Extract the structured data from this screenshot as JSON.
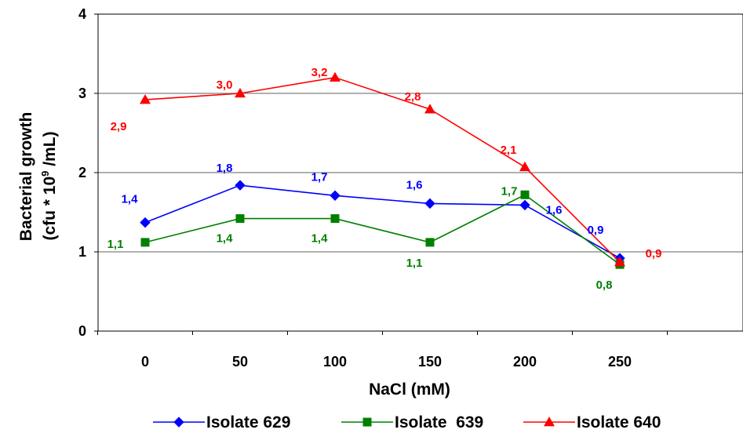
{
  "chart_data": {
    "type": "line",
    "title": "",
    "xlabel": "NaCl (mM)",
    "ylabel_line1": "Bacterial growth",
    "ylabel_line2": "(cfu * 10",
    "ylabel_sup": "9",
    "ylabel_line2_end": " /mL)",
    "x": [
      0,
      50,
      100,
      150,
      200,
      250
    ],
    "x_tick_labels": [
      "0",
      "50",
      "100",
      "150",
      "200",
      "250"
    ],
    "y_tick_labels": [
      "0",
      "1",
      "2",
      "3",
      "4"
    ],
    "ylim": [
      0,
      4
    ],
    "grid": "horizontal",
    "legend_position": "bottom",
    "series": [
      {
        "name": "Isolate 629",
        "color": "#0000ff",
        "marker": "diamond",
        "values": [
          1.37,
          1.84,
          1.71,
          1.61,
          1.59,
          0.92
        ],
        "labels": [
          "1,4",
          "1,8",
          "1,7",
          "1,6",
          "1,6",
          "0,9"
        ]
      },
      {
        "name": "Isolate  639",
        "color": "#008000",
        "marker": "square",
        "values": [
          1.12,
          1.42,
          1.42,
          1.12,
          1.72,
          0.84
        ],
        "labels": [
          "1,1",
          "1,4",
          "1,4",
          "1,1",
          "1,7",
          "0,8"
        ]
      },
      {
        "name": "Isolate 640",
        "color": "#ff0000",
        "marker": "triangle",
        "values": [
          2.92,
          3.0,
          3.2,
          2.8,
          2.07,
          0.87
        ],
        "labels": [
          "2,9",
          "3,0",
          "3,2",
          "2,8",
          "2,1",
          "0,9"
        ]
      }
    ]
  }
}
